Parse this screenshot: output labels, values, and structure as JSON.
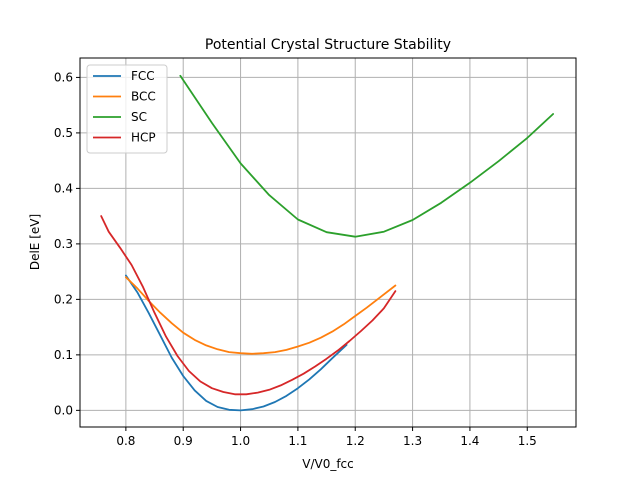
{
  "chart_data": {
    "type": "line",
    "title": "Potential Crystal Structure Stability",
    "xlabel": "V/V0_fcc",
    "ylabel": "DelE [eV]",
    "xlim": [
      0.72,
      1.585
    ],
    "ylim": [
      -0.03,
      0.635
    ],
    "xticks": [
      0.8,
      0.9,
      1.0,
      1.1,
      1.2,
      1.3,
      1.4,
      1.5
    ],
    "xtick_labels": [
      "0.8",
      "0.9",
      "1.0",
      "1.1",
      "1.2",
      "1.3",
      "1.4",
      "1.5"
    ],
    "yticks": [
      0.0,
      0.1,
      0.2,
      0.3,
      0.4,
      0.5,
      0.6
    ],
    "ytick_labels": [
      "0.0",
      "0.1",
      "0.2",
      "0.3",
      "0.4",
      "0.5",
      "0.6"
    ],
    "grid": true,
    "legend_position": "top-left",
    "series": [
      {
        "name": "FCC",
        "color": "#1f77b4",
        "x": [
          0.8,
          0.82,
          0.84,
          0.86,
          0.88,
          0.9,
          0.92,
          0.94,
          0.96,
          0.98,
          1.0,
          1.02,
          1.04,
          1.06,
          1.08,
          1.1,
          1.12,
          1.14,
          1.16,
          1.185
        ],
        "y": [
          0.243,
          0.213,
          0.175,
          0.135,
          0.095,
          0.062,
          0.036,
          0.017,
          0.006,
          0.001,
          0.0,
          0.002,
          0.007,
          0.015,
          0.026,
          0.04,
          0.056,
          0.074,
          0.094,
          0.118
        ]
      },
      {
        "name": "BCC",
        "color": "#ff7f0e",
        "x": [
          0.8,
          0.82,
          0.84,
          0.86,
          0.88,
          0.9,
          0.92,
          0.94,
          0.96,
          0.98,
          1.0,
          1.02,
          1.04,
          1.06,
          1.08,
          1.1,
          1.12,
          1.14,
          1.16,
          1.18,
          1.2,
          1.22,
          1.24,
          1.27
        ],
        "y": [
          0.24,
          0.22,
          0.197,
          0.176,
          0.157,
          0.14,
          0.127,
          0.117,
          0.11,
          0.105,
          0.103,
          0.102,
          0.103,
          0.105,
          0.109,
          0.115,
          0.122,
          0.131,
          0.142,
          0.155,
          0.17,
          0.185,
          0.201,
          0.225
        ]
      },
      {
        "name": "SC",
        "color": "#2ca02c",
        "x": [
          0.895,
          0.95,
          1.0,
          1.05,
          1.1,
          1.15,
          1.2,
          1.25,
          1.3,
          1.35,
          1.4,
          1.45,
          1.5,
          1.545
        ],
        "y": [
          0.603,
          0.518,
          0.445,
          0.388,
          0.344,
          0.321,
          0.313,
          0.322,
          0.343,
          0.374,
          0.41,
          0.449,
          0.491,
          0.534
        ]
      },
      {
        "name": "HCP",
        "color": "#d62728",
        "x": [
          0.757,
          0.77,
          0.79,
          0.81,
          0.83,
          0.85,
          0.87,
          0.89,
          0.91,
          0.93,
          0.95,
          0.97,
          0.99,
          1.01,
          1.03,
          1.05,
          1.07,
          1.09,
          1.11,
          1.13,
          1.15,
          1.17,
          1.19,
          1.21,
          1.23,
          1.25,
          1.27
        ],
        "y": [
          0.35,
          0.322,
          0.293,
          0.262,
          0.222,
          0.176,
          0.133,
          0.098,
          0.071,
          0.052,
          0.04,
          0.033,
          0.029,
          0.029,
          0.032,
          0.037,
          0.045,
          0.055,
          0.066,
          0.079,
          0.093,
          0.108,
          0.125,
          0.143,
          0.162,
          0.184,
          0.215
        ]
      }
    ]
  }
}
